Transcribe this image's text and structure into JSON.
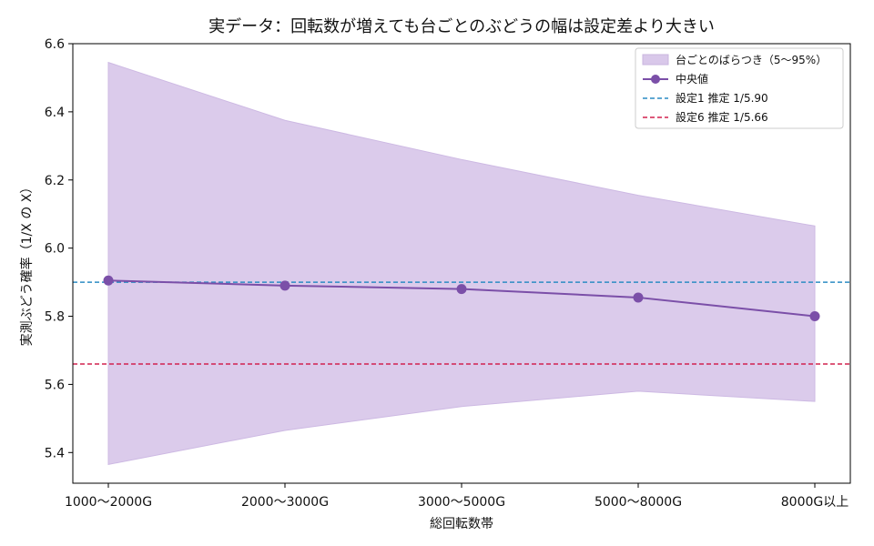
{
  "chart_data": {
    "type": "line",
    "title": "実データ：回転数が増えても台ごとのぶどうの幅は設定差より大きい",
    "xlabel": "総回転数帯",
    "ylabel": "実測ぶどう確率（1/X の X）",
    "categories": [
      "1000〜2000G",
      "2000〜3000G",
      "3000〜5000G",
      "5000〜8000G",
      "8000G以上"
    ],
    "ylim": [
      5.31,
      6.6
    ],
    "yticks": [
      5.4,
      5.6,
      5.8,
      6.0,
      6.2,
      6.4,
      6.6
    ],
    "ytick_labels": [
      "5.4",
      "5.6",
      "5.8",
      "6.0",
      "6.2",
      "6.4",
      "6.6"
    ],
    "band": {
      "name": "台ごとのばらつき（5〜95%）",
      "lower": [
        5.365,
        5.465,
        5.535,
        5.58,
        5.55
      ],
      "upper": [
        6.545,
        6.375,
        6.26,
        6.155,
        6.065
      ],
      "color": "#d9c8ea"
    },
    "series": [
      {
        "name": "中央値",
        "values": [
          5.905,
          5.89,
          5.88,
          5.855,
          5.8
        ],
        "color": "#7b4fa8"
      }
    ],
    "reference_lines": [
      {
        "name": "設定1 推定 1/5.90",
        "value": 5.9,
        "color": "#2c8cc4"
      },
      {
        "name": "設定6 推定 1/5.66",
        "value": 5.66,
        "color": "#d2224f"
      }
    ],
    "legend": "top-right",
    "grid": false
  }
}
